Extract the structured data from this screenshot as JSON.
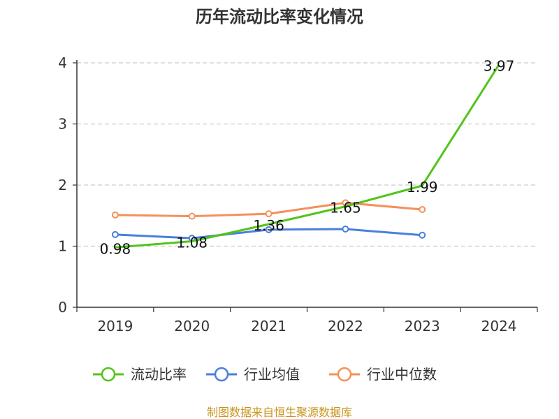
{
  "chart_data": {
    "type": "line",
    "title": "历年流动比率变化情况",
    "categories": [
      "2019",
      "2020",
      "2021",
      "2022",
      "2023",
      "2024"
    ],
    "ylim": [
      0,
      4
    ],
    "yticks": [
      0,
      1,
      2,
      3,
      4
    ],
    "grid": true,
    "legend_position": "bottom",
    "series": [
      {
        "name": "流动比率",
        "color": "#52c41a",
        "values": [
          0.98,
          1.08,
          1.36,
          1.65,
          1.99,
          3.97
        ],
        "show_labels": true,
        "show_markers": false
      },
      {
        "name": "行业均值",
        "color": "#4a7fdc",
        "values": [
          1.19,
          1.13,
          1.27,
          1.28,
          1.18,
          null
        ],
        "show_labels": false,
        "show_markers": true
      },
      {
        "name": "行业中位数",
        "color": "#f5905a",
        "values": [
          1.51,
          1.49,
          1.53,
          1.71,
          1.6,
          null
        ],
        "show_labels": false,
        "show_markers": true
      }
    ],
    "source": "制图数据来自恒生聚源数据库"
  }
}
